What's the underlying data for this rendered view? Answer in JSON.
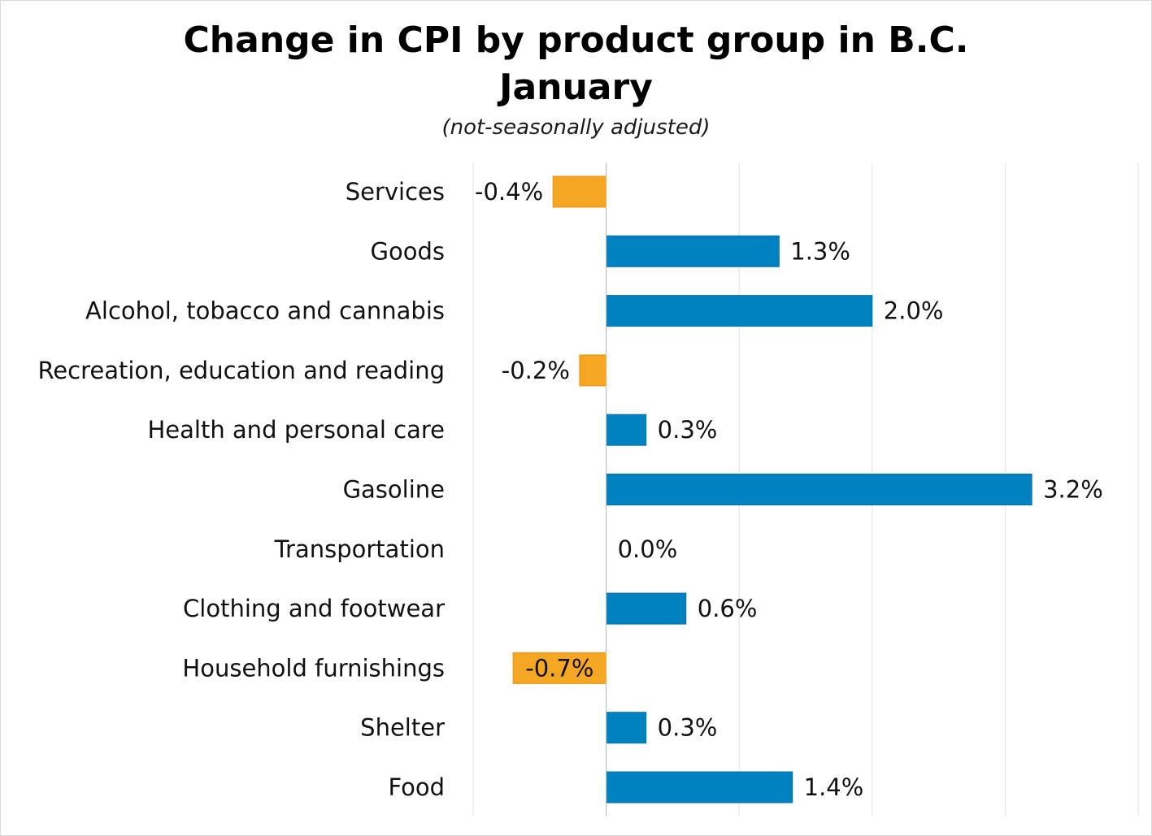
{
  "chart_data": {
    "type": "bar",
    "orientation": "horizontal",
    "title": "Change in CPI by product group in B.C.",
    "title_line2": "January",
    "subtitle": "(not-seasonally adjusted)",
    "categories": [
      "Services",
      "Goods",
      "Alcohol, tobacco and cannabis",
      "Recreation, education and reading",
      "Health and personal care",
      "Gasoline",
      "Transportation",
      "Clothing and footwear",
      "Household furnishings",
      "Shelter",
      "Food"
    ],
    "values": [
      -0.4,
      1.3,
      2.0,
      -0.2,
      0.3,
      3.2,
      0.0,
      0.6,
      -0.7,
      0.3,
      1.4
    ],
    "value_labels": [
      "-0.4%",
      "1.3%",
      "2.0%",
      "-0.2%",
      "0.3%",
      "3.2%",
      "0.0%",
      "0.6%",
      "-0.7%",
      "0.3%",
      "1.4%"
    ],
    "xlim": [
      -1.0,
      4.0
    ],
    "grid": "vertical",
    "legend": "none",
    "colors": {
      "positive": "#0081c0",
      "negative": "#f5a623"
    }
  }
}
